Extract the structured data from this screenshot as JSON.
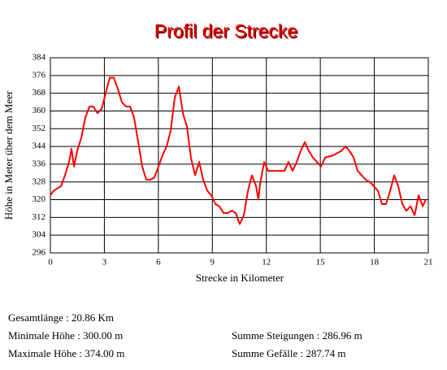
{
  "chart_data": {
    "type": "line",
    "title": "Profil der Strecke",
    "xlabel": "Strecke in Kilometer",
    "ylabel": "Höhe in Meter über dem Meer",
    "x": [
      0,
      0.18,
      0.36,
      0.59,
      0.81,
      1.04,
      1.17,
      1.31,
      1.49,
      1.72,
      1.94,
      2.17,
      2.39,
      2.62,
      2.85,
      3.07,
      3.3,
      3.52,
      3.75,
      3.97,
      4.2,
      4.43,
      4.65,
      4.88,
      5.1,
      5.33,
      5.56,
      5.78,
      6.01,
      6.23,
      6.46,
      6.68,
      6.91,
      7.14,
      7.36,
      7.59,
      7.81,
      8.04,
      8.27,
      8.49,
      8.72,
      8.94,
      9.17,
      9.39,
      9.62,
      9.85,
      10.07,
      10.3,
      10.52,
      10.75,
      10.98,
      11.2,
      11.43,
      11.56,
      11.65,
      11.88,
      12.1,
      12.56,
      13.01,
      13.23,
      13.46,
      13.69,
      13.91,
      14.14,
      14.36,
      14.59,
      14.81,
      15.04,
      15.27,
      15.72,
      16.17,
      16.4,
      16.62,
      16.85,
      17.07,
      17.3,
      17.52,
      17.75,
      17.98,
      18.2,
      18.43,
      18.65,
      18.88,
      19.11,
      19.33,
      19.56,
      19.78,
      20.01,
      20.24,
      20.46,
      20.69,
      20.86
    ],
    "values": [
      322,
      324,
      325,
      326,
      331,
      337,
      343,
      335,
      342,
      348,
      357,
      362,
      362,
      359,
      361,
      368,
      375,
      375,
      370,
      364,
      362,
      362,
      357,
      346,
      335,
      329,
      329,
      330,
      335,
      340,
      344,
      351,
      366,
      371,
      359,
      353,
      339,
      331,
      337,
      329,
      324,
      322,
      318,
      317,
      314,
      314,
      315,
      314,
      309,
      313,
      324,
      331,
      326,
      320,
      327,
      337,
      333,
      333,
      333,
      337,
      333,
      337,
      342,
      346,
      342,
      339,
      337,
      335,
      339,
      340,
      342,
      344,
      342,
      339,
      333,
      331,
      329,
      328,
      326,
      324,
      318,
      318,
      324,
      331,
      326,
      318,
      315,
      317,
      313,
      322,
      317,
      320
    ],
    "color": "#ff0000",
    "xlim": [
      0,
      21
    ],
    "xticks": [
      0,
      3,
      6,
      9,
      12,
      15,
      18,
      21
    ],
    "ylim": [
      296,
      384
    ],
    "yticks": [
      296,
      304,
      312,
      320,
      328,
      336,
      344,
      352,
      360,
      368,
      376,
      384
    ],
    "grid": true
  },
  "stats": {
    "left": [
      "Gesamtlänge : 20.86 Km",
      "Minimale Höhe : 300.00 m",
      "Maximale Höhe : 374.00 m"
    ],
    "right": [
      "Summe Steigungen : 286.96 m",
      "Summe Gefälle : 287.74 m"
    ]
  }
}
